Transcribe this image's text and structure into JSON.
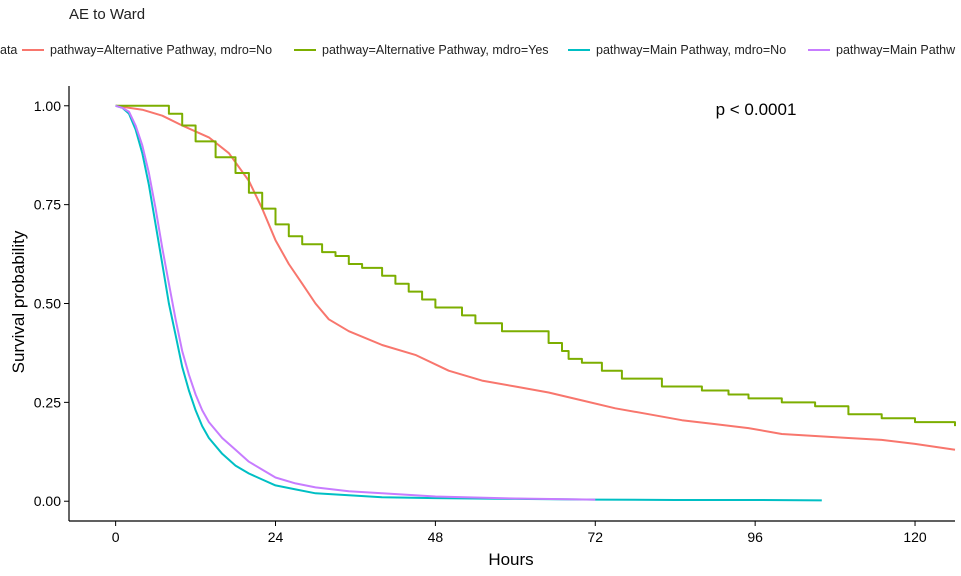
{
  "chart_data": {
    "type": "line",
    "subtype": "kaplan-meier step curves",
    "title": "AE to Ward",
    "xlabel": "Hours",
    "ylabel": "Survival probability",
    "xlim": [
      -7,
      126
    ],
    "ylim": [
      -0.05,
      1.05
    ],
    "xticks": [
      0,
      24,
      48,
      72,
      96,
      120
    ],
    "xtick_labels": [
      "0",
      "24",
      "48",
      "72",
      "96",
      "120"
    ],
    "yticks": [
      0,
      0.25,
      0.5,
      0.75,
      1
    ],
    "ytick_labels": [
      "0.00",
      "0.25",
      "0.50",
      "0.75",
      "1.00"
    ],
    "grid": false,
    "legend_position": "top",
    "legend_partial_label": "ata",
    "annotation": "p < 0.0001",
    "annotation_position": "top-right",
    "series": [
      {
        "name": "pathway=Alternative Pathway, mdro=No",
        "color": "#F8766D",
        "step": false,
        "x": [
          0,
          4,
          7,
          10,
          14,
          17,
          20,
          22,
          24,
          26,
          28,
          30,
          32,
          35,
          40,
          45,
          50,
          55,
          60,
          65,
          70,
          75,
          80,
          85,
          90,
          95,
          100,
          105,
          110,
          115,
          120,
          126
        ],
        "y": [
          1.0,
          0.99,
          0.975,
          0.95,
          0.92,
          0.88,
          0.81,
          0.74,
          0.66,
          0.6,
          0.55,
          0.5,
          0.46,
          0.43,
          0.395,
          0.37,
          0.33,
          0.305,
          0.29,
          0.275,
          0.255,
          0.235,
          0.22,
          0.205,
          0.195,
          0.185,
          0.17,
          0.165,
          0.16,
          0.155,
          0.145,
          0.13
        ]
      },
      {
        "name": "pathway=Alternative Pathway, mdro=Yes",
        "color": "#7CAE00",
        "step": true,
        "x": [
          0,
          8,
          10,
          12,
          15,
          18,
          20,
          22,
          24,
          26,
          28,
          31,
          33,
          35,
          37,
          40,
          42,
          44,
          46,
          48,
          52,
          54,
          58,
          62,
          65,
          67,
          68,
          70,
          73,
          76,
          82,
          88,
          92,
          95,
          100,
          105,
          110,
          115,
          120,
          126
        ],
        "y": [
          1.0,
          0.98,
          0.95,
          0.91,
          0.87,
          0.83,
          0.78,
          0.74,
          0.7,
          0.67,
          0.65,
          0.63,
          0.62,
          0.6,
          0.59,
          0.57,
          0.55,
          0.53,
          0.51,
          0.49,
          0.47,
          0.45,
          0.43,
          0.43,
          0.4,
          0.38,
          0.36,
          0.35,
          0.33,
          0.31,
          0.29,
          0.28,
          0.27,
          0.26,
          0.25,
          0.24,
          0.22,
          0.21,
          0.2,
          0.19
        ]
      },
      {
        "name": "pathway=Main Pathway, mdro=No",
        "color": "#00BFC4",
        "step": false,
        "x": [
          0,
          1,
          2,
          3,
          4,
          5,
          6,
          7,
          8,
          9,
          10,
          11,
          12,
          13,
          14,
          16,
          18,
          20,
          22,
          24,
          27,
          30,
          35,
          40,
          48,
          60,
          72,
          84,
          96,
          106
        ],
        "y": [
          1.0,
          0.995,
          0.98,
          0.94,
          0.88,
          0.8,
          0.7,
          0.6,
          0.5,
          0.42,
          0.34,
          0.28,
          0.23,
          0.19,
          0.16,
          0.12,
          0.09,
          0.07,
          0.055,
          0.04,
          0.03,
          0.02,
          0.015,
          0.01,
          0.008,
          0.006,
          0.004,
          0.003,
          0.003,
          0.002
        ]
      },
      {
        "name": "pathway=Main Pathway, mdro=No",
        "color": "#C77CFF",
        "step": false,
        "x": [
          0,
          1,
          2,
          3,
          4,
          5,
          6,
          7,
          8,
          9,
          10,
          11,
          12,
          13,
          14,
          16,
          18,
          20,
          22,
          24,
          27,
          30,
          35,
          40,
          48,
          60,
          72
        ],
        "y": [
          1.0,
          0.995,
          0.985,
          0.95,
          0.9,
          0.83,
          0.74,
          0.64,
          0.55,
          0.46,
          0.38,
          0.32,
          0.27,
          0.23,
          0.2,
          0.16,
          0.13,
          0.1,
          0.08,
          0.06,
          0.045,
          0.035,
          0.025,
          0.02,
          0.012,
          0.007,
          0.004
        ]
      }
    ]
  },
  "legend_items": [
    {
      "label": "pathway=Alternative Pathway, mdro=No",
      "color": "#F8766D"
    },
    {
      "label": "pathway=Alternative Pathway, mdro=Yes",
      "color": "#7CAE00"
    },
    {
      "label": "pathway=Main Pathway, mdro=No",
      "color": "#00BFC4"
    },
    {
      "label": "pathway=Main Pathw",
      "color": "#C77CFF"
    }
  ]
}
